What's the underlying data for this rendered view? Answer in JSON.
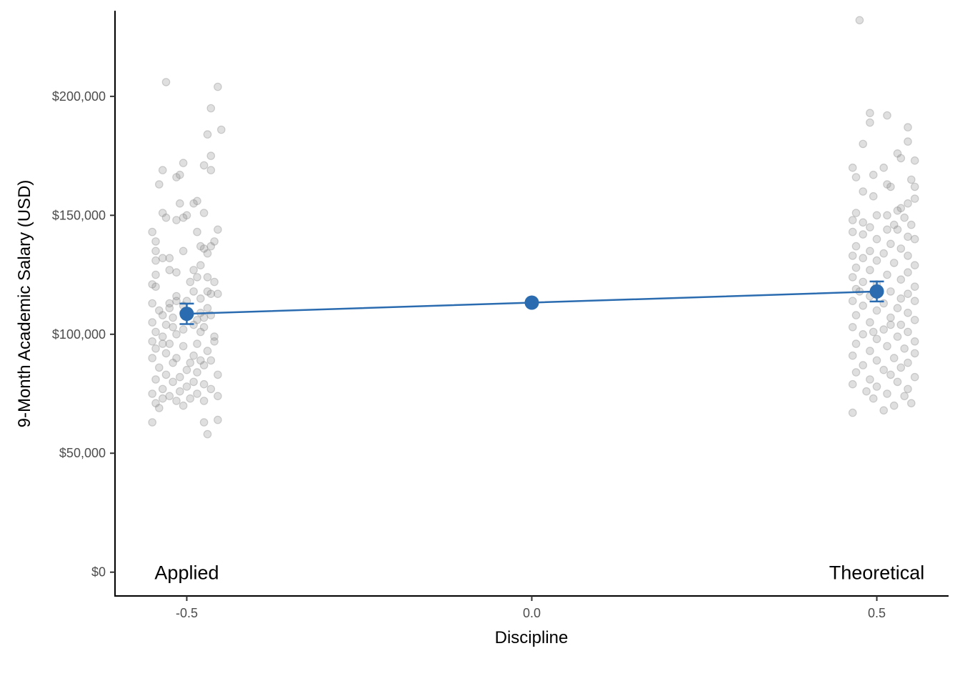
{
  "chart_data": {
    "type": "scatter",
    "title": "",
    "xlabel": "Discipline",
    "ylabel": "9-Month Academic Salary (USD)",
    "xlim": [
      -0.604,
      0.604
    ],
    "ylim": [
      -10000,
      236000
    ],
    "x_ticks": [
      {
        "value": -0.5,
        "label": "-0.5"
      },
      {
        "value": 0.0,
        "label": "0.0"
      },
      {
        "value": 0.5,
        "label": "0.5"
      }
    ],
    "y_ticks": [
      {
        "value": 0,
        "label": "$0"
      },
      {
        "value": 50000,
        "label": "$50,000"
      },
      {
        "value": 100000,
        "label": "$100,000"
      },
      {
        "value": 150000,
        "label": "$150,000"
      },
      {
        "value": 200000,
        "label": "$200,000"
      }
    ],
    "group_labels": [
      {
        "x": -0.5,
        "y": 0,
        "text": "Applied"
      },
      {
        "x": 0.5,
        "y": 0,
        "text": "Theoretical"
      }
    ],
    "grid": false,
    "colors": {
      "points": "#808080",
      "fit": "#2b6cb0",
      "axis": "#000000"
    },
    "raw_points": {
      "applied": [
        [
          -0.53,
          206000
        ],
        [
          -0.455,
          204000
        ],
        [
          -0.465,
          195000
        ],
        [
          -0.45,
          186000
        ],
        [
          -0.47,
          184000
        ],
        [
          -0.465,
          175000
        ],
        [
          -0.505,
          172000
        ],
        [
          -0.475,
          171000
        ],
        [
          -0.535,
          169000
        ],
        [
          -0.465,
          169000
        ],
        [
          -0.51,
          167000
        ],
        [
          -0.515,
          166000
        ],
        [
          -0.54,
          163000
        ],
        [
          -0.485,
          156000
        ],
        [
          -0.51,
          155000
        ],
        [
          -0.49,
          155000
        ],
        [
          -0.475,
          151000
        ],
        [
          -0.535,
          151000
        ],
        [
          -0.5,
          150000
        ],
        [
          -0.505,
          149000
        ],
        [
          -0.53,
          149000
        ],
        [
          -0.515,
          148000
        ],
        [
          -0.455,
          144000
        ],
        [
          -0.55,
          143000
        ],
        [
          -0.485,
          143000
        ],
        [
          -0.46,
          139000
        ],
        [
          -0.545,
          139000
        ],
        [
          -0.465,
          137000
        ],
        [
          -0.48,
          137000
        ],
        [
          -0.475,
          136000
        ],
        [
          -0.545,
          135000
        ],
        [
          -0.505,
          135000
        ],
        [
          -0.47,
          134000
        ],
        [
          -0.535,
          132000
        ],
        [
          -0.525,
          132000
        ],
        [
          -0.545,
          131000
        ],
        [
          -0.48,
          129000
        ],
        [
          -0.525,
          127000
        ],
        [
          -0.49,
          127000
        ],
        [
          -0.515,
          126000
        ],
        [
          -0.545,
          125000
        ],
        [
          -0.47,
          124000
        ],
        [
          -0.485,
          124000
        ],
        [
          -0.495,
          122000
        ],
        [
          -0.46,
          122000
        ],
        [
          -0.55,
          121000
        ],
        [
          -0.545,
          120000
        ],
        [
          -0.47,
          118000
        ],
        [
          -0.455,
          117000
        ],
        [
          -0.465,
          117000
        ],
        [
          -0.48,
          115000
        ],
        [
          -0.5,
          114000
        ],
        [
          -0.515,
          114000
        ],
        [
          -0.525,
          113000
        ],
        [
          -0.55,
          113000
        ],
        [
          -0.505,
          112000
        ],
        [
          -0.525,
          111000
        ],
        [
          -0.47,
          111000
        ],
        [
          -0.54,
          110000
        ],
        [
          -0.505,
          109000
        ],
        [
          -0.48,
          109000
        ],
        [
          -0.535,
          108000
        ],
        [
          -0.465,
          108000
        ],
        [
          -0.475,
          107000
        ],
        [
          -0.52,
          107000
        ],
        [
          -0.485,
          106000
        ],
        [
          -0.55,
          105000
        ],
        [
          -0.49,
          104000
        ],
        [
          -0.53,
          104000
        ],
        [
          -0.475,
          103000
        ],
        [
          -0.505,
          102000
        ],
        [
          -0.545,
          101000
        ],
        [
          -0.48,
          101000
        ],
        [
          -0.515,
          100000
        ],
        [
          -0.535,
          99000
        ],
        [
          -0.46,
          99000
        ],
        [
          -0.55,
          97000
        ],
        [
          -0.485,
          96000
        ],
        [
          -0.525,
          96000
        ],
        [
          -0.505,
          95000
        ],
        [
          -0.545,
          94000
        ],
        [
          -0.47,
          93000
        ],
        [
          -0.53,
          92000
        ],
        [
          -0.49,
          91000
        ],
        [
          -0.515,
          90000
        ],
        [
          -0.55,
          90000
        ],
        [
          -0.465,
          89000
        ],
        [
          -0.495,
          88000
        ],
        [
          -0.52,
          88000
        ],
        [
          -0.475,
          87000
        ],
        [
          -0.54,
          86000
        ],
        [
          -0.5,
          85000
        ],
        [
          -0.485,
          84000
        ],
        [
          -0.53,
          83000
        ],
        [
          -0.455,
          83000
        ],
        [
          -0.51,
          82000
        ],
        [
          -0.545,
          81000
        ],
        [
          -0.49,
          80000
        ],
        [
          -0.52,
          80000
        ],
        [
          -0.475,
          79000
        ],
        [
          -0.5,
          78000
        ],
        [
          -0.535,
          77000
        ],
        [
          -0.465,
          77000
        ],
        [
          -0.51,
          76000
        ],
        [
          -0.55,
          75000
        ],
        [
          -0.485,
          75000
        ],
        [
          -0.525,
          74000
        ],
        [
          -0.455,
          74000
        ],
        [
          -0.495,
          73000
        ],
        [
          -0.535,
          73000
        ],
        [
          -0.475,
          72000
        ],
        [
          -0.515,
          72000
        ],
        [
          -0.545,
          71000
        ],
        [
          -0.505,
          70000
        ],
        [
          -0.54,
          69000
        ],
        [
          -0.55,
          63000
        ],
        [
          -0.455,
          64000
        ],
        [
          -0.475,
          63000
        ],
        [
          -0.47,
          58000
        ],
        [
          -0.46,
          97000
        ],
        [
          -0.515,
          116000
        ],
        [
          -0.49,
          118000
        ],
        [
          -0.535,
          96000
        ],
        [
          -0.48,
          89000
        ],
        [
          -0.52,
          103000
        ]
      ],
      "theoretical": [
        [
          0.475,
          232000
        ],
        [
          0.49,
          193000
        ],
        [
          0.515,
          192000
        ],
        [
          0.49,
          189000
        ],
        [
          0.545,
          187000
        ],
        [
          0.545,
          181000
        ],
        [
          0.48,
          180000
        ],
        [
          0.53,
          176000
        ],
        [
          0.535,
          174000
        ],
        [
          0.555,
          173000
        ],
        [
          0.465,
          170000
        ],
        [
          0.51,
          170000
        ],
        [
          0.495,
          167000
        ],
        [
          0.47,
          166000
        ],
        [
          0.55,
          165000
        ],
        [
          0.515,
          163000
        ],
        [
          0.52,
          162000
        ],
        [
          0.555,
          162000
        ],
        [
          0.48,
          160000
        ],
        [
          0.495,
          158000
        ],
        [
          0.555,
          157000
        ],
        [
          0.545,
          155000
        ],
        [
          0.535,
          153000
        ],
        [
          0.53,
          152000
        ],
        [
          0.47,
          151000
        ],
        [
          0.5,
          150000
        ],
        [
          0.515,
          150000
        ],
        [
          0.54,
          149000
        ],
        [
          0.465,
          148000
        ],
        [
          0.48,
          147000
        ],
        [
          0.525,
          146000
        ],
        [
          0.55,
          146000
        ],
        [
          0.49,
          145000
        ],
        [
          0.515,
          144000
        ],
        [
          0.53,
          144000
        ],
        [
          0.465,
          143000
        ],
        [
          0.48,
          142000
        ],
        [
          0.545,
          141000
        ],
        [
          0.5,
          140000
        ],
        [
          0.555,
          140000
        ],
        [
          0.52,
          138000
        ],
        [
          0.47,
          137000
        ],
        [
          0.535,
          136000
        ],
        [
          0.49,
          135000
        ],
        [
          0.51,
          134000
        ],
        [
          0.465,
          133000
        ],
        [
          0.545,
          133000
        ],
        [
          0.48,
          132000
        ],
        [
          0.5,
          131000
        ],
        [
          0.525,
          130000
        ],
        [
          0.555,
          129000
        ],
        [
          0.47,
          128000
        ],
        [
          0.49,
          127000
        ],
        [
          0.545,
          126000
        ],
        [
          0.515,
          125000
        ],
        [
          0.465,
          124000
        ],
        [
          0.535,
          123000
        ],
        [
          0.48,
          122000
        ],
        [
          0.5,
          121000
        ],
        [
          0.555,
          120000
        ],
        [
          0.47,
          119000
        ],
        [
          0.52,
          118000
        ],
        [
          0.545,
          117000
        ],
        [
          0.49,
          116000
        ],
        [
          0.535,
          115000
        ],
        [
          0.465,
          114000
        ],
        [
          0.555,
          114000
        ],
        [
          0.51,
          113000
        ],
        [
          0.48,
          112000
        ],
        [
          0.53,
          111000
        ],
        [
          0.5,
          110000
        ],
        [
          0.545,
          109000
        ],
        [
          0.47,
          108000
        ],
        [
          0.52,
          107000
        ],
        [
          0.555,
          106000
        ],
        [
          0.49,
          105000
        ],
        [
          0.535,
          104000
        ],
        [
          0.465,
          103000
        ],
        [
          0.51,
          102000
        ],
        [
          0.545,
          101000
        ],
        [
          0.48,
          100000
        ],
        [
          0.53,
          99000
        ],
        [
          0.5,
          98000
        ],
        [
          0.555,
          97000
        ],
        [
          0.47,
          96000
        ],
        [
          0.515,
          95000
        ],
        [
          0.54,
          94000
        ],
        [
          0.49,
          93000
        ],
        [
          0.555,
          92000
        ],
        [
          0.465,
          91000
        ],
        [
          0.525,
          90000
        ],
        [
          0.5,
          89000
        ],
        [
          0.545,
          88000
        ],
        [
          0.48,
          87000
        ],
        [
          0.535,
          86000
        ],
        [
          0.51,
          85000
        ],
        [
          0.47,
          84000
        ],
        [
          0.52,
          83000
        ],
        [
          0.555,
          82000
        ],
        [
          0.49,
          81000
        ],
        [
          0.53,
          80000
        ],
        [
          0.465,
          79000
        ],
        [
          0.5,
          78000
        ],
        [
          0.545,
          77000
        ],
        [
          0.485,
          76000
        ],
        [
          0.515,
          75000
        ],
        [
          0.54,
          74000
        ],
        [
          0.495,
          73000
        ],
        [
          0.55,
          71000
        ],
        [
          0.525,
          70000
        ],
        [
          0.465,
          67000
        ],
        [
          0.51,
          68000
        ],
        [
          0.495,
          101000
        ],
        [
          0.52,
          104000
        ],
        [
          0.475,
          118000
        ]
      ]
    },
    "series": [
      {
        "points": [
          {
            "x": -0.5,
            "y": 108600,
            "ymin": 104300,
            "ymax": 112900
          },
          {
            "x": 0.0,
            "y": 113300
          },
          {
            "x": 0.5,
            "y": 118000,
            "ymin": 113800,
            "ymax": 122200
          }
        ]
      }
    ]
  }
}
